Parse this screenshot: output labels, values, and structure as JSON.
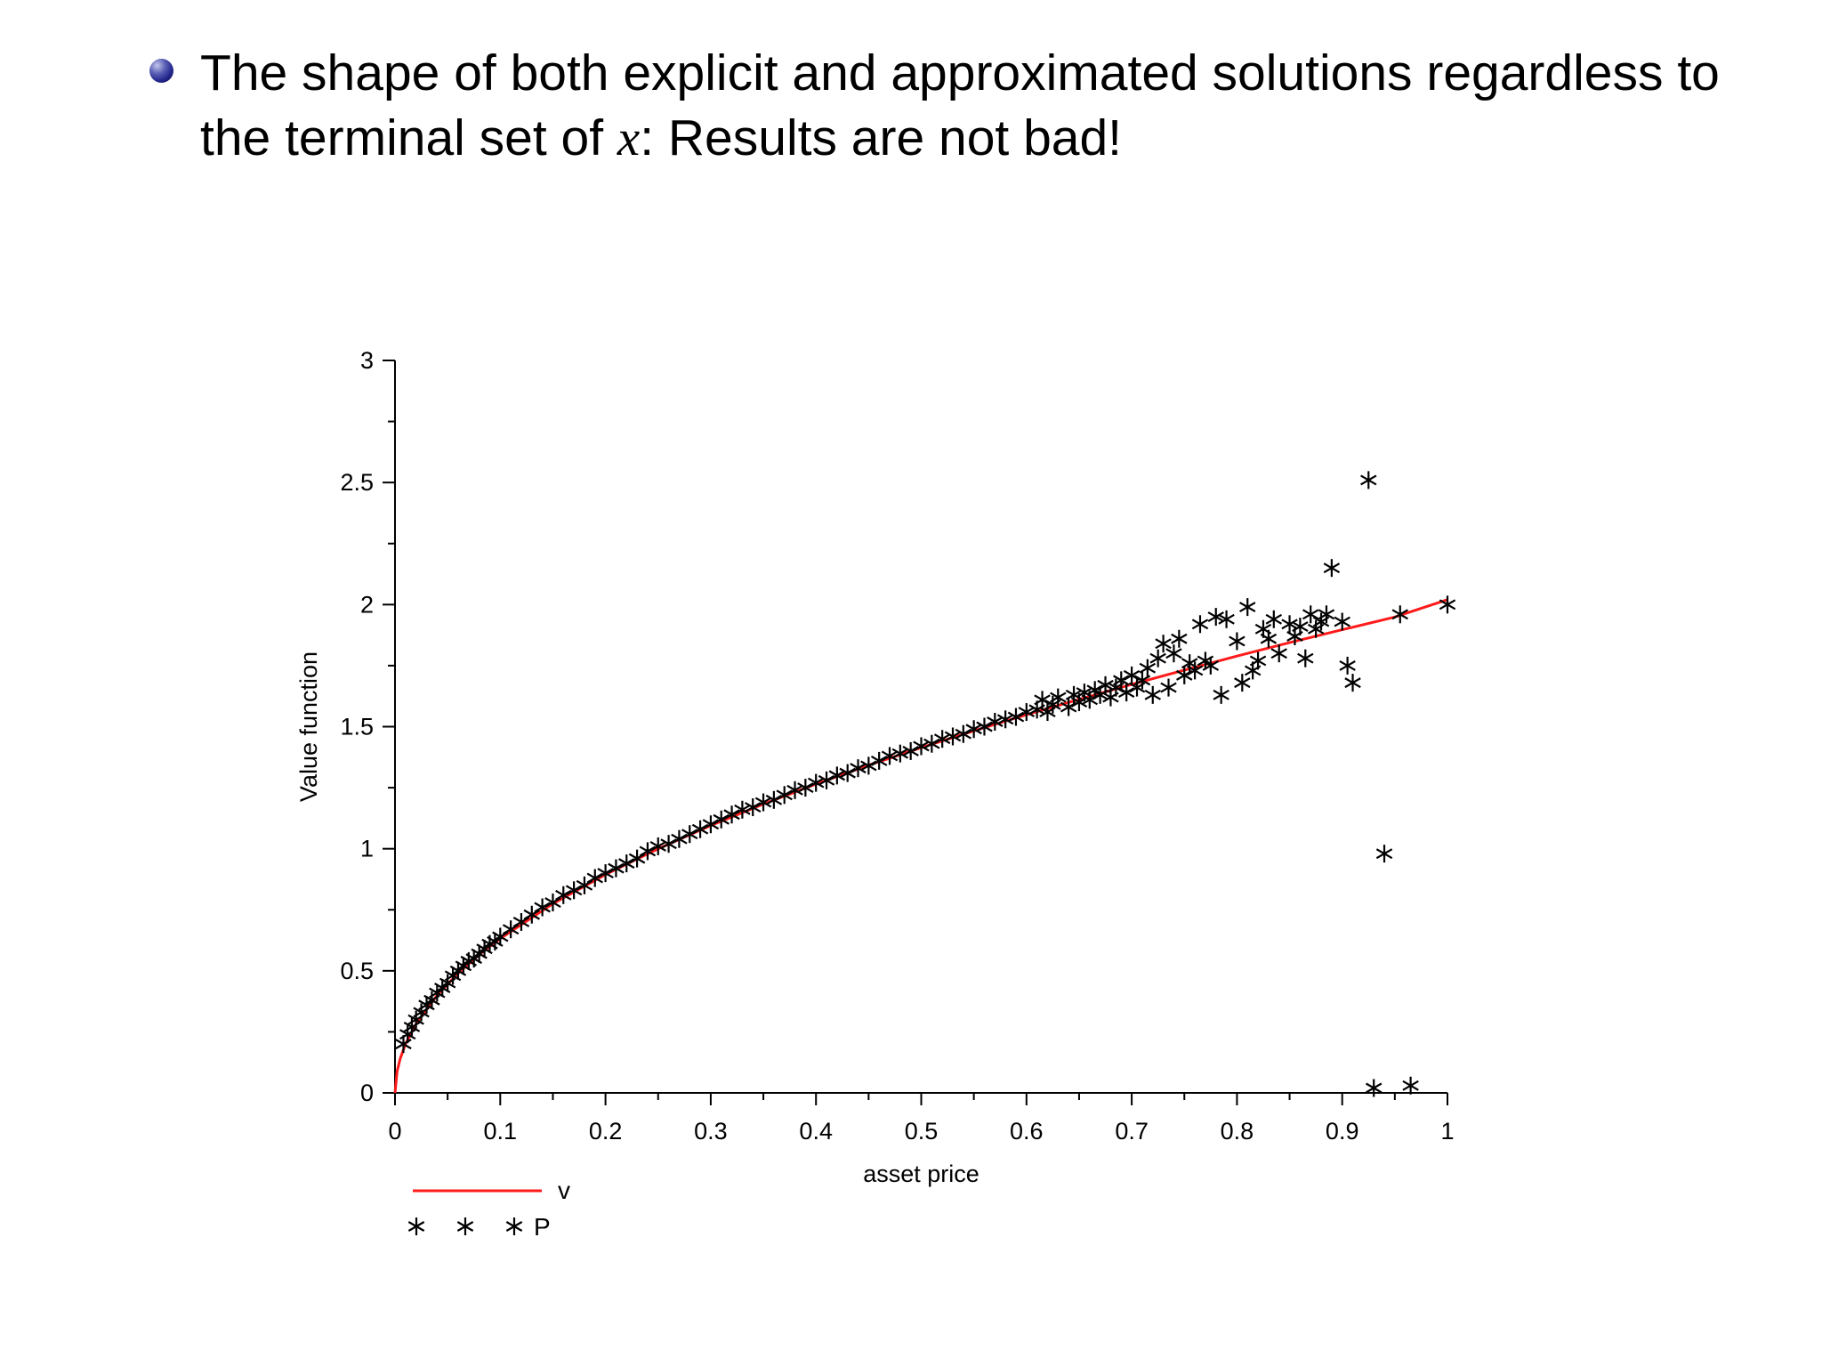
{
  "slide": {
    "title": {
      "part1": "The shape of both explicit and approximated solutions regardless to the terminal set of ",
      "italic": "x",
      "part2": ": Results are not bad!"
    }
  },
  "chart_data": {
    "type": "scatter",
    "title": "",
    "xlabel": "asset price",
    "ylabel": "Value function",
    "xlim": [
      0,
      1
    ],
    "ylim": [
      0,
      3
    ],
    "grid": false,
    "x_ticks": [
      {
        "v": 0.0,
        "label": "0"
      },
      {
        "v": 0.1,
        "label": "0.1"
      },
      {
        "v": 0.2,
        "label": "0.2"
      },
      {
        "v": 0.3,
        "label": "0.3"
      },
      {
        "v": 0.4,
        "label": "0.4"
      },
      {
        "v": 0.5,
        "label": "0.5"
      },
      {
        "v": 0.6,
        "label": "0.6"
      },
      {
        "v": 0.7,
        "label": "0.7"
      },
      {
        "v": 0.8,
        "label": "0.8"
      },
      {
        "v": 0.9,
        "label": "0.9"
      },
      {
        "v": 1.0,
        "label": "1"
      }
    ],
    "y_ticks": [
      {
        "v": 0.0,
        "label": "0"
      },
      {
        "v": 0.5,
        "label": "0.5"
      },
      {
        "v": 1.0,
        "label": "1"
      },
      {
        "v": 1.5,
        "label": "1.5"
      },
      {
        "v": 2.0,
        "label": "2"
      },
      {
        "v": 2.5,
        "label": "2.5"
      },
      {
        "v": 3.0,
        "label": "3"
      }
    ],
    "legend": [
      {
        "label": "v",
        "type": "line",
        "color": "#ff1a1a"
      },
      {
        "label": "P",
        "type": "marker",
        "color": "#000000"
      }
    ],
    "series": [
      {
        "name": "v",
        "type": "line",
        "color": "#ff1a1a",
        "points": [
          [
            0,
            0
          ],
          [
            0.002,
            0.089
          ],
          [
            0.005,
            0.141
          ],
          [
            0.01,
            0.2
          ],
          [
            0.02,
            0.283
          ],
          [
            0.04,
            0.4
          ],
          [
            0.06,
            0.49
          ],
          [
            0.08,
            0.566
          ],
          [
            0.1,
            0.632
          ],
          [
            0.15,
            0.775
          ],
          [
            0.2,
            0.894
          ],
          [
            0.25,
            1.0
          ],
          [
            0.3,
            1.095
          ],
          [
            0.35,
            1.183
          ],
          [
            0.4,
            1.265
          ],
          [
            0.45,
            1.342
          ],
          [
            0.5,
            1.414
          ],
          [
            0.55,
            1.483
          ],
          [
            0.6,
            1.549
          ],
          [
            0.65,
            1.612
          ],
          [
            0.7,
            1.673
          ],
          [
            0.75,
            1.732
          ],
          [
            0.8,
            1.789
          ],
          [
            0.85,
            1.844
          ],
          [
            0.9,
            1.897
          ],
          [
            0.95,
            1.949
          ],
          [
            1.0,
            2.02
          ]
        ]
      },
      {
        "name": "P",
        "type": "scatter",
        "color": "#000000",
        "marker": "asterisk",
        "points": [
          [
            0.008,
            0.2
          ],
          [
            0.012,
            0.24
          ],
          [
            0.016,
            0.27
          ],
          [
            0.02,
            0.3
          ],
          [
            0.025,
            0.33
          ],
          [
            0.03,
            0.36
          ],
          [
            0.035,
            0.38
          ],
          [
            0.04,
            0.41
          ],
          [
            0.045,
            0.43
          ],
          [
            0.05,
            0.45
          ],
          [
            0.055,
            0.48
          ],
          [
            0.06,
            0.5
          ],
          [
            0.065,
            0.52
          ],
          [
            0.07,
            0.54
          ],
          [
            0.075,
            0.55
          ],
          [
            0.08,
            0.57
          ],
          [
            0.085,
            0.59
          ],
          [
            0.09,
            0.61
          ],
          [
            0.095,
            0.62
          ],
          [
            0.1,
            0.64
          ],
          [
            0.11,
            0.67
          ],
          [
            0.12,
            0.7
          ],
          [
            0.13,
            0.73
          ],
          [
            0.14,
            0.76
          ],
          [
            0.15,
            0.78
          ],
          [
            0.16,
            0.81
          ],
          [
            0.17,
            0.83
          ],
          [
            0.18,
            0.85
          ],
          [
            0.19,
            0.88
          ],
          [
            0.2,
            0.9
          ],
          [
            0.21,
            0.92
          ],
          [
            0.22,
            0.94
          ],
          [
            0.23,
            0.96
          ],
          [
            0.24,
            0.99
          ],
          [
            0.25,
            1.01
          ],
          [
            0.26,
            1.02
          ],
          [
            0.27,
            1.04
          ],
          [
            0.28,
            1.06
          ],
          [
            0.29,
            1.08
          ],
          [
            0.3,
            1.1
          ],
          [
            0.31,
            1.12
          ],
          [
            0.32,
            1.14
          ],
          [
            0.33,
            1.16
          ],
          [
            0.34,
            1.17
          ],
          [
            0.35,
            1.19
          ],
          [
            0.36,
            1.2
          ],
          [
            0.37,
            1.22
          ],
          [
            0.38,
            1.24
          ],
          [
            0.39,
            1.25
          ],
          [
            0.4,
            1.27
          ],
          [
            0.41,
            1.28
          ],
          [
            0.42,
            1.3
          ],
          [
            0.43,
            1.31
          ],
          [
            0.44,
            1.33
          ],
          [
            0.45,
            1.34
          ],
          [
            0.46,
            1.36
          ],
          [
            0.47,
            1.38
          ],
          [
            0.48,
            1.39
          ],
          [
            0.49,
            1.4
          ],
          [
            0.5,
            1.42
          ],
          [
            0.51,
            1.43
          ],
          [
            0.52,
            1.45
          ],
          [
            0.53,
            1.46
          ],
          [
            0.54,
            1.47
          ],
          [
            0.55,
            1.49
          ],
          [
            0.56,
            1.5
          ],
          [
            0.57,
            1.52
          ],
          [
            0.58,
            1.53
          ],
          [
            0.59,
            1.54
          ],
          [
            0.6,
            1.56
          ],
          [
            0.61,
            1.57
          ],
          [
            0.615,
            1.61
          ],
          [
            0.62,
            1.56
          ],
          [
            0.625,
            1.59
          ],
          [
            0.63,
            1.62
          ],
          [
            0.64,
            1.58
          ],
          [
            0.645,
            1.63
          ],
          [
            0.65,
            1.6
          ],
          [
            0.655,
            1.64
          ],
          [
            0.66,
            1.61
          ],
          [
            0.665,
            1.65
          ],
          [
            0.67,
            1.63
          ],
          [
            0.675,
            1.67
          ],
          [
            0.68,
            1.62
          ],
          [
            0.685,
            1.66
          ],
          [
            0.69,
            1.69
          ],
          [
            0.695,
            1.64
          ],
          [
            0.7,
            1.71
          ],
          [
            0.705,
            1.66
          ],
          [
            0.71,
            1.69
          ],
          [
            0.715,
            1.74
          ],
          [
            0.72,
            1.63
          ],
          [
            0.725,
            1.78
          ],
          [
            0.73,
            1.84
          ],
          [
            0.735,
            1.66
          ],
          [
            0.74,
            1.8
          ],
          [
            0.745,
            1.86
          ],
          [
            0.75,
            1.71
          ],
          [
            0.755,
            1.76
          ],
          [
            0.76,
            1.73
          ],
          [
            0.765,
            1.92
          ],
          [
            0.77,
            1.77
          ],
          [
            0.775,
            1.75
          ],
          [
            0.78,
            1.95
          ],
          [
            0.785,
            1.63
          ],
          [
            0.79,
            1.94
          ],
          [
            0.8,
            1.85
          ],
          [
            0.805,
            1.68
          ],
          [
            0.81,
            1.99
          ],
          [
            0.815,
            1.73
          ],
          [
            0.82,
            1.77
          ],
          [
            0.825,
            1.9
          ],
          [
            0.83,
            1.86
          ],
          [
            0.835,
            1.94
          ],
          [
            0.84,
            1.8
          ],
          [
            0.85,
            1.92
          ],
          [
            0.855,
            1.87
          ],
          [
            0.86,
            1.91
          ],
          [
            0.865,
            1.78
          ],
          [
            0.87,
            1.96
          ],
          [
            0.875,
            1.9
          ],
          [
            0.88,
            1.93
          ],
          [
            0.885,
            1.96
          ],
          [
            0.89,
            2.15
          ],
          [
            0.9,
            1.93
          ],
          [
            0.905,
            1.75
          ],
          [
            0.91,
            1.68
          ],
          [
            0.925,
            2.51
          ],
          [
            0.93,
            0.02
          ],
          [
            0.94,
            0.98
          ],
          [
            0.955,
            1.96
          ],
          [
            0.965,
            0.03
          ],
          [
            1.0,
            2.0
          ]
        ]
      }
    ]
  }
}
